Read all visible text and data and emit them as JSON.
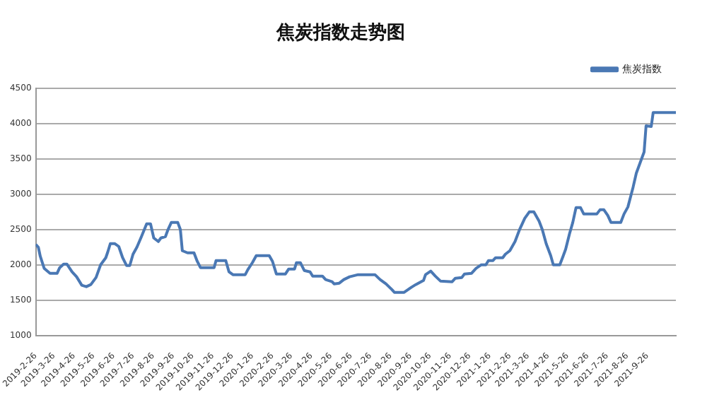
{
  "chart_data": {
    "type": "line",
    "title": "焦炭指数走势图",
    "legend": "top right",
    "grid": "y",
    "marker": "none",
    "line_style": "solid",
    "x": [
      "2019-02-26",
      "2019-03-02",
      "2019-03-05",
      "2019-03-11",
      "2019-03-20",
      "2019-03-31",
      "2019-04-04",
      "2019-04-10",
      "2019-04-15",
      "2019-04-23",
      "2019-04-30",
      "2019-05-08",
      "2019-05-15",
      "2019-05-22",
      "2019-05-30",
      "2019-06-06",
      "2019-06-14",
      "2019-06-17",
      "2019-06-21",
      "2019-06-28",
      "2019-07-04",
      "2019-07-10",
      "2019-07-16",
      "2019-07-21",
      "2019-07-26",
      "2019-08-01",
      "2019-08-08",
      "2019-08-16",
      "2019-08-22",
      "2019-08-27",
      "2019-09-03",
      "2019-09-07",
      "2019-09-14",
      "2019-09-18",
      "2019-09-23",
      "2019-10-03",
      "2019-10-07",
      "2019-10-10",
      "2019-10-18",
      "2019-10-28",
      "2019-11-02",
      "2019-11-07",
      "2019-11-28",
      "2019-12-01",
      "2019-12-16",
      "2019-12-21",
      "2019-12-27",
      "2020-01-15",
      "2020-01-19",
      "2020-01-26",
      "2020-02-01",
      "2020-02-21",
      "2020-02-26",
      "2020-03-03",
      "2020-03-17",
      "2020-03-22",
      "2020-03-31",
      "2020-04-03",
      "2020-04-09",
      "2020-04-15",
      "2020-04-24",
      "2020-04-28",
      "2020-05-13",
      "2020-05-18",
      "2020-05-28",
      "2020-05-31",
      "2020-06-08",
      "2020-06-15",
      "2020-06-24",
      "2020-07-07",
      "2020-08-02",
      "2020-08-10",
      "2020-08-19",
      "2020-08-28",
      "2020-09-01",
      "2020-09-16",
      "2020-09-27",
      "2020-10-04",
      "2020-10-16",
      "2020-10-19",
      "2020-10-27",
      "2020-11-03",
      "2020-11-11",
      "2020-11-29",
      "2020-12-04",
      "2020-12-14",
      "2020-12-18",
      "2020-12-29",
      "2021-01-05",
      "2021-01-13",
      "2021-01-20",
      "2021-01-24",
      "2021-01-31",
      "2021-02-04",
      "2021-02-15",
      "2021-02-19",
      "2021-02-26",
      "2021-03-06",
      "2021-03-13",
      "2021-03-21",
      "2021-03-28",
      "2021-04-04",
      "2021-04-12",
      "2021-04-17",
      "2021-04-23",
      "2021-04-30",
      "2021-05-04",
      "2021-05-14",
      "2021-05-19",
      "2021-05-23",
      "2021-05-29",
      "2021-06-03",
      "2021-06-08",
      "2021-06-15",
      "2021-06-20",
      "2021-07-10",
      "2021-07-15",
      "2021-07-21",
      "2021-07-27",
      "2021-08-01",
      "2021-08-16",
      "2021-08-21",
      "2021-08-27",
      "2021-09-04",
      "2021-09-09",
      "2021-09-15",
      "2021-09-21",
      "2021-09-24",
      "2021-10-02",
      "2021-10-05",
      "2021-11-09"
    ],
    "series": [
      {
        "name": "焦炭指数",
        "color": "#4a78b4",
        "values": [
          2290,
          2250,
          2120,
          1950,
          1880,
          1880,
          1960,
          2010,
          2010,
          1900,
          1830,
          1710,
          1690,
          1720,
          1820,
          2000,
          2100,
          2180,
          2300,
          2300,
          2260,
          2100,
          1990,
          1990,
          2150,
          2250,
          2400,
          2580,
          2580,
          2380,
          2330,
          2380,
          2400,
          2500,
          2600,
          2600,
          2500,
          2200,
          2170,
          2170,
          2050,
          1960,
          1960,
          2060,
          2060,
          1900,
          1860,
          1860,
          1930,
          2030,
          2130,
          2130,
          2050,
          1870,
          1870,
          1940,
          1940,
          2030,
          2030,
          1920,
          1900,
          1840,
          1840,
          1790,
          1760,
          1730,
          1740,
          1790,
          1830,
          1860,
          1860,
          1790,
          1730,
          1650,
          1610,
          1610,
          1680,
          1720,
          1780,
          1860,
          1910,
          1840,
          1770,
          1760,
          1810,
          1820,
          1870,
          1880,
          1950,
          2000,
          2000,
          2060,
          2060,
          2100,
          2100,
          2150,
          2200,
          2330,
          2500,
          2660,
          2750,
          2750,
          2620,
          2500,
          2300,
          2130,
          2000,
          2000,
          2120,
          2220,
          2440,
          2600,
          2810,
          2810,
          2720,
          2720,
          2780,
          2780,
          2700,
          2600,
          2600,
          2720,
          2820,
          3100,
          3300,
          3450,
          3600,
          3970,
          3960,
          4160,
          4160
        ]
      }
    ],
    "xlim": [
      "2019-02-26",
      "2021-11-09"
    ],
    "xticks": [
      {
        "value": "2019-02-26",
        "label": "2019-2-26"
      },
      {
        "value": "2019-03-26",
        "label": "2019-3-26"
      },
      {
        "value": "2019-04-26",
        "label": "2019-4-26"
      },
      {
        "value": "2019-05-26",
        "label": "2019-5-26"
      },
      {
        "value": "2019-06-26",
        "label": "2019-6-26"
      },
      {
        "value": "2019-07-26",
        "label": "2019-7-26"
      },
      {
        "value": "2019-08-26",
        "label": "2019-8-26"
      },
      {
        "value": "2019-09-26",
        "label": "2019-9-26"
      },
      {
        "value": "2019-10-26",
        "label": "2019-10-26"
      },
      {
        "value": "2019-11-26",
        "label": "2019-11-26"
      },
      {
        "value": "2019-12-26",
        "label": "2019-12-26"
      },
      {
        "value": "2020-01-26",
        "label": "2020-1-26"
      },
      {
        "value": "2020-02-26",
        "label": "2020-2-26"
      },
      {
        "value": "2020-03-26",
        "label": "2020-3-26"
      },
      {
        "value": "2020-04-26",
        "label": "2020-4-26"
      },
      {
        "value": "2020-05-26",
        "label": "2020-5-26"
      },
      {
        "value": "2020-06-26",
        "label": "2020-6-26"
      },
      {
        "value": "2020-07-26",
        "label": "2020-7-26"
      },
      {
        "value": "2020-08-26",
        "label": "2020-8-26"
      },
      {
        "value": "2020-09-26",
        "label": "2020-9-26"
      },
      {
        "value": "2020-10-26",
        "label": "2020-10-26"
      },
      {
        "value": "2020-11-26",
        "label": "2020-11-26"
      },
      {
        "value": "2020-12-26",
        "label": "2020-12-26"
      },
      {
        "value": "2021-01-26",
        "label": "2021-1-26"
      },
      {
        "value": "2021-02-26",
        "label": "2021-2-26"
      },
      {
        "value": "2021-03-26",
        "label": "2021-3-26"
      },
      {
        "value": "2021-04-26",
        "label": "2021-4-26"
      },
      {
        "value": "2021-05-26",
        "label": "2021-5-26"
      },
      {
        "value": "2021-06-26",
        "label": "2021-6-26"
      },
      {
        "value": "2021-07-26",
        "label": "2021-7-26"
      },
      {
        "value": "2021-08-26",
        "label": "2021-8-26"
      },
      {
        "value": "2021-09-26",
        "label": "2021-9-26"
      }
    ],
    "ylim": [
      1000,
      4500
    ],
    "yticks": [
      1000,
      1500,
      2000,
      2500,
      3000,
      3500,
      4000,
      4500
    ]
  }
}
